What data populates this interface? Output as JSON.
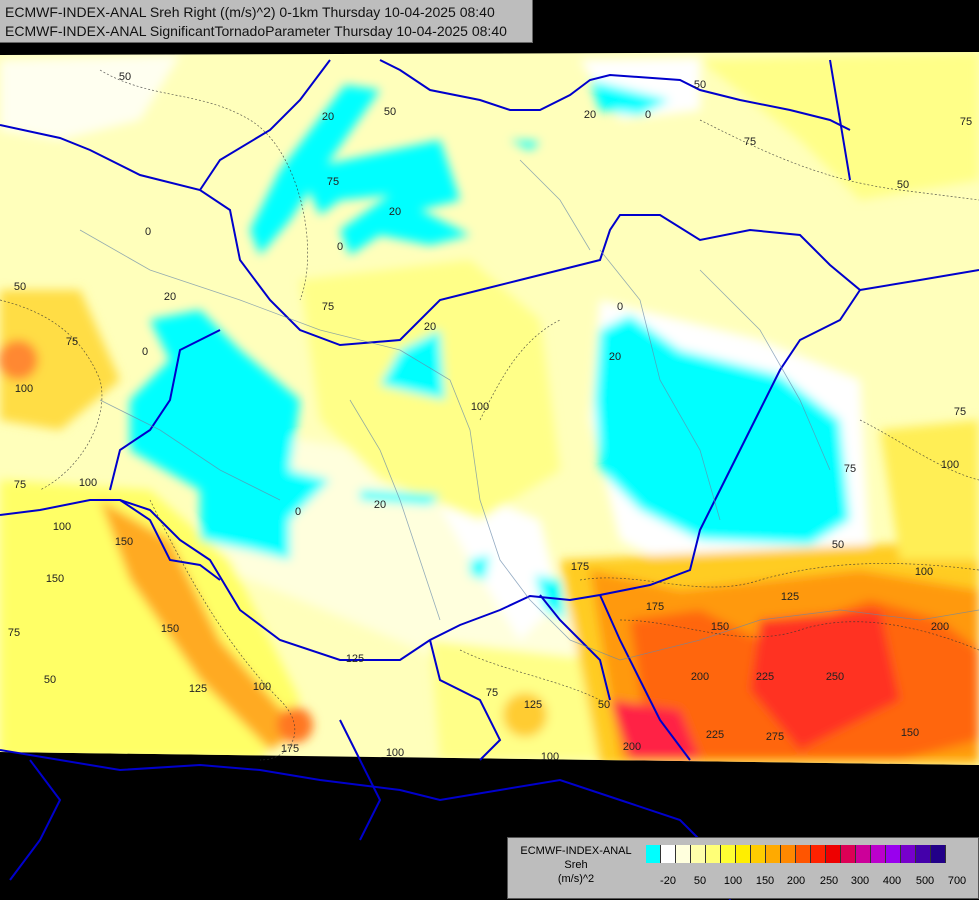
{
  "titles": {
    "line1": "ECMWF-INDEX-ANAL Sreh Right ((m/s)^2) 0-1km Thursday 10-04-2025 08:40",
    "line2": "ECMWF-INDEX-ANAL SignificantTornadoParameter Thursday 10-04-2025 08:40"
  },
  "legend": {
    "model": "ECMWF-INDEX-ANAL",
    "variable": "Sreh",
    "unit": "(m/s)^2",
    "colors": [
      "#00ffff",
      "#ffffff",
      "#ffffdd",
      "#ffffaa",
      "#ffff77",
      "#ffff33",
      "#ffee00",
      "#ffcc00",
      "#ffaa00",
      "#ff8800",
      "#ff5500",
      "#ff2200",
      "#ee0000",
      "#dd0055",
      "#cc0099",
      "#bb00cc",
      "#9900ee",
      "#7700cc",
      "#4400aa",
      "#220088"
    ],
    "tick_labels": [
      "-20",
      "50",
      "100",
      "150",
      "200",
      "250",
      "300",
      "400",
      "500",
      "700"
    ]
  },
  "contour_labels": [
    "50",
    "20",
    "0",
    "50",
    "75",
    "50",
    "0",
    "20",
    "75",
    "20",
    "0",
    "0",
    "20",
    "50",
    "75",
    "20",
    "100",
    "0",
    "75",
    "100",
    "20",
    "0",
    "20",
    "100",
    "100",
    "100",
    "75",
    "75",
    "50",
    "75",
    "100",
    "150",
    "150",
    "125",
    "175",
    "100",
    "175",
    "150",
    "125",
    "50",
    "200",
    "250",
    "225",
    "225",
    "275",
    "200",
    "150",
    "175",
    "125",
    "100",
    "200",
    "50",
    "75",
    "125",
    "100",
    "150",
    "50",
    "75",
    "75"
  ]
}
